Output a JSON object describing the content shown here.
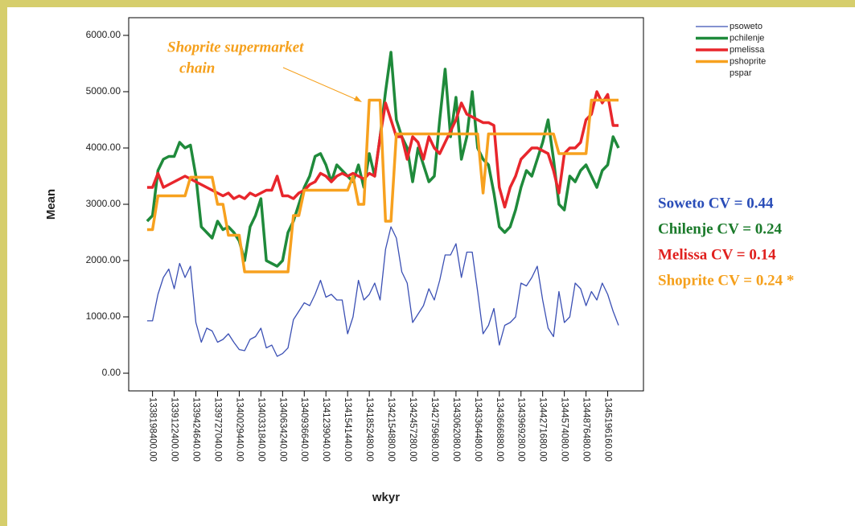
{
  "chart_data": {
    "type": "line",
    "ylabel": "Mean",
    "xlabel": "wkyr",
    "ylim": [
      -314,
      6314
    ],
    "yticks": [
      {
        "value": 0,
        "label": "0.00"
      },
      {
        "value": 1000,
        "label": "1000.00"
      },
      {
        "value": 2000,
        "label": "2000.00"
      },
      {
        "value": 3000,
        "label": "3000.00"
      },
      {
        "value": 4000,
        "label": "4000.00"
      },
      {
        "value": 5000,
        "label": "5000.00"
      },
      {
        "value": 6000,
        "label": "6000.00"
      }
    ],
    "categories": [
      null,
      "1338198400.00",
      null,
      null,
      null,
      "1339122400.00",
      null,
      null,
      null,
      "1339424640.00",
      null,
      null,
      null,
      "1339727040.00",
      null,
      null,
      null,
      "1340029440.00",
      null,
      null,
      null,
      "1340331840.00",
      null,
      null,
      null,
      "1340634240.00",
      null,
      null,
      null,
      "1340936640.00",
      null,
      null,
      null,
      "1341239040.00",
      null,
      null,
      null,
      "1341541440.00",
      null,
      null,
      null,
      "1341852480.00",
      null,
      null,
      null,
      "1342154880.00",
      null,
      null,
      null,
      "1342457280.00",
      null,
      null,
      null,
      "1342759680.00",
      null,
      null,
      null,
      "1343062080.00",
      null,
      null,
      null,
      "1343364480.00",
      null,
      null,
      null,
      "1343666880.00",
      null,
      null,
      null,
      "1343969280.00",
      null,
      null,
      null,
      "1344271680.00",
      null,
      null,
      null,
      "1344574080.00",
      null,
      null,
      null,
      "1344876480.00",
      null,
      null,
      null,
      "1345196160.00",
      null,
      null
    ],
    "series": [
      {
        "name": "psoweto",
        "color": "#3b50b4",
        "width": 1.3,
        "values": [
          930,
          930,
          1400,
          1700,
          1850,
          1500,
          1950,
          1700,
          1900,
          900,
          550,
          800,
          750,
          550,
          600,
          700,
          550,
          420,
          400,
          600,
          650,
          800,
          450,
          500,
          300,
          350,
          450,
          950,
          1100,
          1250,
          1200,
          1400,
          1650,
          1350,
          1400,
          1300,
          1300,
          700,
          1000,
          1650,
          1300,
          1400,
          1600,
          1300,
          2200,
          2600,
          2400,
          1800,
          1600,
          900,
          1050,
          1200,
          1500,
          1300,
          1650,
          2100,
          2100,
          2300,
          1700,
          2150,
          2150,
          1450,
          700,
          850,
          1150,
          500,
          850,
          900,
          1000,
          1600,
          1550,
          1700,
          1900,
          1300,
          800,
          650,
          1450,
          900,
          1000,
          1600,
          1500,
          1200,
          1450,
          1300,
          1600,
          1400,
          1100,
          850
        ]
      },
      {
        "name": "pchilenje",
        "color": "#1f8a3b",
        "width": 3.5,
        "values": [
          2700,
          2800,
          3600,
          3800,
          3850,
          3850,
          4100,
          4000,
          4050,
          3500,
          2600,
          2500,
          2400,
          2700,
          2550,
          2600,
          2500,
          2350,
          2000,
          2600,
          2800,
          3100,
          2000,
          1950,
          1900,
          2000,
          2500,
          2700,
          3000,
          3300,
          3500,
          3850,
          3900,
          3700,
          3400,
          3700,
          3600,
          3500,
          3400,
          3700,
          3300,
          3900,
          3500,
          4200,
          5000,
          5700,
          4500,
          4200,
          4000,
          3400,
          4000,
          3700,
          3400,
          3500,
          4500,
          5400,
          4200,
          4900,
          3800,
          4200,
          5000,
          4000,
          3800,
          3700,
          3200,
          2600,
          2500,
          2600,
          2900,
          3300,
          3600,
          3500,
          3800,
          4100,
          4500,
          3800,
          3000,
          2900,
          3500,
          3400,
          3600,
          3700,
          3500,
          3300,
          3600,
          3700,
          4200,
          4000
        ]
      },
      {
        "name": "pmelissa",
        "color": "#e8262c",
        "width": 3.5,
        "values": [
          3300,
          3300,
          3550,
          3300,
          3350,
          3400,
          3450,
          3500,
          3450,
          3400,
          3350,
          3300,
          3250,
          3200,
          3150,
          3200,
          3100,
          3150,
          3100,
          3200,
          3150,
          3200,
          3250,
          3250,
          3500,
          3150,
          3150,
          3100,
          3200,
          3250,
          3350,
          3400,
          3550,
          3500,
          3400,
          3500,
          3550,
          3500,
          3550,
          3500,
          3450,
          3550,
          3500,
          4200,
          4800,
          4500,
          4200,
          4200,
          3800,
          4200,
          4100,
          3800,
          4200,
          4000,
          3900,
          4100,
          4300,
          4500,
          4800,
          4600,
          4550,
          4500,
          4450,
          4450,
          4400,
          3300,
          2950,
          3300,
          3500,
          3800,
          3900,
          4000,
          4000,
          3950,
          3900,
          3600,
          3200,
          3900,
          4000,
          4000,
          4100,
          4500,
          4600,
          5000,
          4800,
          4950,
          4400,
          4400
        ]
      },
      {
        "name": "pshoprite",
        "color": "#f7a11f",
        "width": 3.5,
        "values": [
          2550,
          2550,
          3150,
          3150,
          3150,
          3150,
          3150,
          3150,
          3480,
          3480,
          3480,
          3480,
          3480,
          3000,
          3000,
          2450,
          2450,
          2450,
          1800,
          1800,
          1800,
          1800,
          1800,
          1800,
          1800,
          1800,
          1800,
          2800,
          2800,
          3250,
          3250,
          3250,
          3250,
          3250,
          3250,
          3250,
          3250,
          3250,
          3500,
          3000,
          3000,
          4850,
          4850,
          4850,
          2700,
          2700,
          4250,
          4250,
          4250,
          4250,
          4250,
          4250,
          4250,
          4250,
          4250,
          4250,
          4250,
          4250,
          4250,
          4250,
          4250,
          4250,
          3200,
          4250,
          4250,
          4250,
          4250,
          4250,
          4250,
          4250,
          4250,
          4250,
          4250,
          4250,
          4250,
          4250,
          3900,
          3900,
          3900,
          3900,
          3900,
          3900,
          4850,
          4850,
          4850,
          4850,
          4850,
          4850
        ]
      },
      {
        "name": "pspar",
        "color": null,
        "width": 1,
        "values": [
          null,
          null,
          null,
          null,
          null,
          null,
          null,
          null,
          null,
          null,
          null,
          null,
          null,
          null,
          null,
          null,
          null,
          null,
          null,
          null,
          null,
          null,
          null,
          null,
          null,
          null,
          null,
          null,
          null,
          null,
          null,
          null,
          null,
          null,
          null,
          null,
          null,
          null,
          null,
          null,
          null,
          null,
          null,
          null,
          null,
          null,
          null,
          null,
          null,
          null,
          null,
          null,
          null,
          null,
          null,
          null,
          null,
          null,
          null,
          null,
          null,
          null,
          null,
          null,
          null,
          null,
          null,
          null,
          null,
          null,
          null,
          null,
          null,
          null,
          null,
          null,
          null,
          null,
          null,
          null,
          null,
          null,
          null,
          null,
          null,
          null,
          null,
          null
        ]
      }
    ],
    "annotation": [
      "Shoprite supermarket",
      "chain"
    ],
    "notes": [
      {
        "text": "Soweto CV = 0.44",
        "color": "#2a4db8"
      },
      {
        "text": "Chilenje CV = 0.24",
        "color": "#1a7a2a"
      },
      {
        "text": "Melissa CV = 0.14",
        "color": "#e0201e"
      },
      {
        "text": "Shoprite CV = 0.24 *",
        "color": "#f5a01c"
      }
    ]
  }
}
